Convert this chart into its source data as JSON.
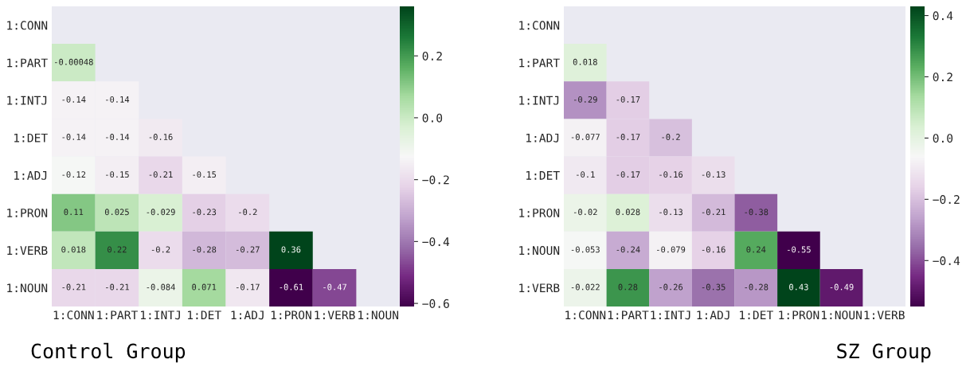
{
  "chart_data": [
    {
      "type": "heatmap",
      "title": "Control Group",
      "categories": [
        "1:CONN",
        "1:PART",
        "1:INTJ",
        "1:DET",
        "1:ADJ",
        "1:PRON",
        "1:VERB",
        "1:NOUN"
      ],
      "y_categories": [
        "1:CONN",
        "1:PART",
        "1:INTJ",
        "1:DET",
        "1:ADJ",
        "1:PRON",
        "1:VERB",
        "1:NOUN"
      ],
      "cells": [
        [
          null,
          null,
          null,
          null,
          null,
          null,
          null,
          null
        ],
        [
          -0.00048,
          null,
          null,
          null,
          null,
          null,
          null,
          null
        ],
        [
          -0.14,
          -0.14,
          null,
          null,
          null,
          null,
          null,
          null
        ],
        [
          -0.14,
          -0.14,
          -0.16,
          null,
          null,
          null,
          null,
          null
        ],
        [
          -0.12,
          -0.15,
          -0.21,
          -0.15,
          null,
          null,
          null,
          null
        ],
        [
          0.11,
          0.025,
          -0.029,
          -0.23,
          -0.2,
          null,
          null,
          null
        ],
        [
          0.018,
          0.22,
          -0.2,
          -0.28,
          -0.27,
          0.36,
          null,
          null
        ],
        [
          -0.21,
          -0.21,
          -0.084,
          0.071,
          -0.17,
          -0.61,
          -0.47,
          null
        ]
      ],
      "data_labels": true,
      "clim": [
        -0.61,
        0.36
      ],
      "cticks": [
        {
          "value": 0.2,
          "label": "0.2"
        },
        {
          "value": 0.0,
          "label": "0.0"
        },
        {
          "value": -0.2,
          "label": "−0.2"
        },
        {
          "value": -0.4,
          "label": "−0.4"
        },
        {
          "value": -0.6,
          "label": "−0.6"
        }
      ]
    },
    {
      "type": "heatmap",
      "title": "SZ Group",
      "categories": [
        "1:CONN",
        "1:PART",
        "1:INTJ",
        "1:ADJ",
        "1:DET",
        "1:PRON",
        "1:NOUN",
        "1:VERB"
      ],
      "y_categories": [
        "1:CONN",
        "1:PART",
        "1:INTJ",
        "1:ADJ",
        "1:DET",
        "1:PRON",
        "1:NOUN",
        "1:VERB"
      ],
      "cells": [
        [
          null,
          null,
          null,
          null,
          null,
          null,
          null,
          null
        ],
        [
          0.018,
          null,
          null,
          null,
          null,
          null,
          null,
          null
        ],
        [
          -0.29,
          -0.17,
          null,
          null,
          null,
          null,
          null,
          null
        ],
        [
          -0.077,
          -0.17,
          -0.2,
          null,
          null,
          null,
          null,
          null
        ],
        [
          -0.1,
          -0.17,
          -0.16,
          -0.13,
          null,
          null,
          null,
          null
        ],
        [
          -0.02,
          0.028,
          -0.13,
          -0.21,
          -0.38,
          null,
          null,
          null
        ],
        [
          -0.053,
          -0.24,
          -0.079,
          -0.16,
          0.24,
          -0.55,
          null,
          null
        ],
        [
          -0.022,
          0.28,
          -0.26,
          -0.35,
          -0.28,
          0.43,
          -0.49,
          null
        ]
      ],
      "data_labels": true,
      "clim": [
        -0.55,
        0.43
      ],
      "cticks": [
        {
          "value": 0.4,
          "label": "0.4"
        },
        {
          "value": 0.2,
          "label": "0.2"
        },
        {
          "value": 0.0,
          "label": "0.0"
        },
        {
          "value": -0.2,
          "label": "−0.2"
        },
        {
          "value": -0.4,
          "label": "−0.4"
        }
      ]
    }
  ]
}
